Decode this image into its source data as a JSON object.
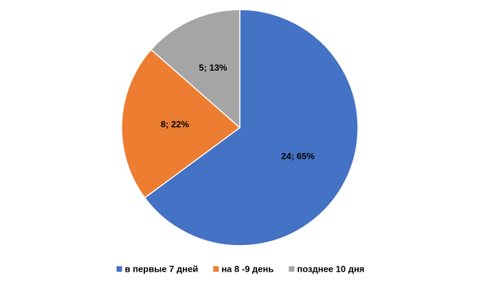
{
  "chart_data": {
    "type": "pie",
    "categories": [
      "в первые 7 дней",
      "на 8 -9 день",
      "позднее 10 дня"
    ],
    "values": [
      24,
      8,
      5
    ],
    "value_labels": [
      "24; 65%",
      "8; 22%",
      "5; 13%"
    ],
    "colors": [
      "#4472c4",
      "#ed7d31",
      "#a5a5a5"
    ]
  }
}
